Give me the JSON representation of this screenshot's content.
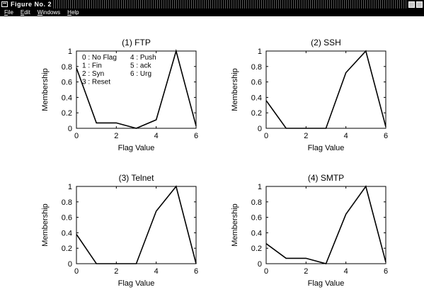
{
  "window": {
    "title": "Figure No. 2",
    "menu": [
      "File",
      "Edit",
      "Windows",
      "Help"
    ]
  },
  "chart_data": [
    {
      "type": "line",
      "title": "(1) FTP",
      "xlabel": "Flag Value",
      "ylabel": "Membership",
      "x": [
        0,
        1,
        2,
        3,
        4,
        5,
        6
      ],
      "series": [
        {
          "values": [
            0.78,
            0.07,
            0.07,
            0.0,
            0.11,
            1.0,
            0.03
          ]
        }
      ],
      "xlim": [
        0,
        6
      ],
      "ylim": [
        0,
        1
      ],
      "xticks": [
        "0",
        "2",
        "4",
        "6"
      ],
      "yticks": [
        "0",
        "0.2",
        "0.4",
        "0.6",
        "0.8",
        "1"
      ],
      "legend": {
        "placement": "top-left",
        "col1": [
          "0 : No Flag",
          "1 : Fin",
          "2 : Syn",
          "3 : Reset"
        ],
        "col2": [
          "4 : Push",
          "5 : ack",
          "6 : Urg"
        ]
      }
    },
    {
      "type": "line",
      "title": "(2) SSH",
      "xlabel": "Flag Value",
      "ylabel": "Membership",
      "x": [
        0,
        1,
        2,
        3,
        4,
        5,
        6
      ],
      "series": [
        {
          "values": [
            0.36,
            0.0,
            0.0,
            0.0,
            0.72,
            1.0,
            0.02
          ]
        }
      ],
      "xlim": [
        0,
        6
      ],
      "ylim": [
        0,
        1
      ],
      "xticks": [
        "0",
        "2",
        "4",
        "6"
      ],
      "yticks": [
        "0",
        "0.2",
        "0.4",
        "0.6",
        "0.8",
        "1"
      ]
    },
    {
      "type": "line",
      "title": "(3) Telnet",
      "xlabel": "Flag Value",
      "ylabel": "Membership",
      "x": [
        0,
        1,
        2,
        3,
        4,
        5,
        6
      ],
      "series": [
        {
          "values": [
            0.38,
            0.0,
            0.0,
            0.0,
            0.68,
            1.0,
            0.0
          ]
        }
      ],
      "xlim": [
        0,
        6
      ],
      "ylim": [
        0,
        1
      ],
      "xticks": [
        "0",
        "2",
        "4",
        "6"
      ],
      "yticks": [
        "0",
        "0.2",
        "0.4",
        "0.6",
        "0.8",
        "1"
      ]
    },
    {
      "type": "line",
      "title": "(4) SMTP",
      "xlabel": "Flag Value",
      "ylabel": "Membership",
      "x": [
        0,
        1,
        2,
        3,
        4,
        5,
        6
      ],
      "series": [
        {
          "values": [
            0.26,
            0.07,
            0.07,
            0.0,
            0.64,
            1.0,
            0.02
          ]
        }
      ],
      "xlim": [
        0,
        6
      ],
      "ylim": [
        0,
        1
      ],
      "xticks": [
        "0",
        "2",
        "4",
        "6"
      ],
      "yticks": [
        "0",
        "0.2",
        "0.4",
        "0.6",
        "0.8",
        "1"
      ]
    }
  ]
}
